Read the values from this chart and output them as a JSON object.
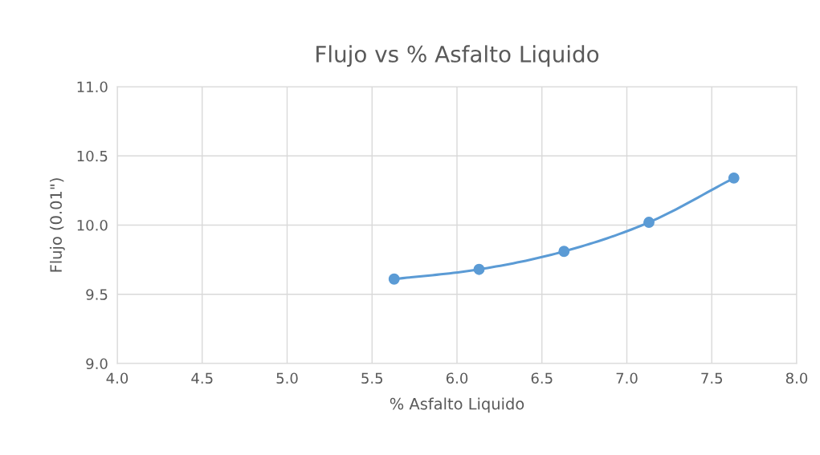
{
  "chart_data": {
    "type": "line",
    "title": "Flujo vs % Asfalto Liquido",
    "xlabel": "% Asfalto Liquido",
    "ylabel": "Flujo (0.01\")",
    "x": [
      5.63,
      6.13,
      6.63,
      7.13,
      7.63
    ],
    "series": [
      {
        "color": "#5b9bd5",
        "values": [
          9.61,
          9.68,
          9.81,
          10.02,
          10.34
        ]
      }
    ],
    "xlim": [
      4.0,
      8.0
    ],
    "xticks": [
      {
        "value": 4.0,
        "label": "4.0"
      },
      {
        "value": 4.5,
        "label": "4.5"
      },
      {
        "value": 5.0,
        "label": "5.0"
      },
      {
        "value": 5.5,
        "label": "5.5"
      },
      {
        "value": 6.0,
        "label": "6.0"
      },
      {
        "value": 6.5,
        "label": "6.5"
      },
      {
        "value": 7.0,
        "label": "7.0"
      },
      {
        "value": 7.5,
        "label": "7.5"
      },
      {
        "value": 8.0,
        "label": "8.0"
      }
    ],
    "ylim": [
      9.0,
      11.0
    ],
    "yticks": [
      {
        "value": 9.0,
        "label": "9.0"
      },
      {
        "value": 9.5,
        "label": "9.5"
      },
      {
        "value": 10.0,
        "label": "10.0"
      },
      {
        "value": 10.5,
        "label": "10.5"
      },
      {
        "value": 11.0,
        "label": "11.0"
      }
    ],
    "grid": true,
    "marker": "circle",
    "line_style": "solid",
    "legend": false
  }
}
